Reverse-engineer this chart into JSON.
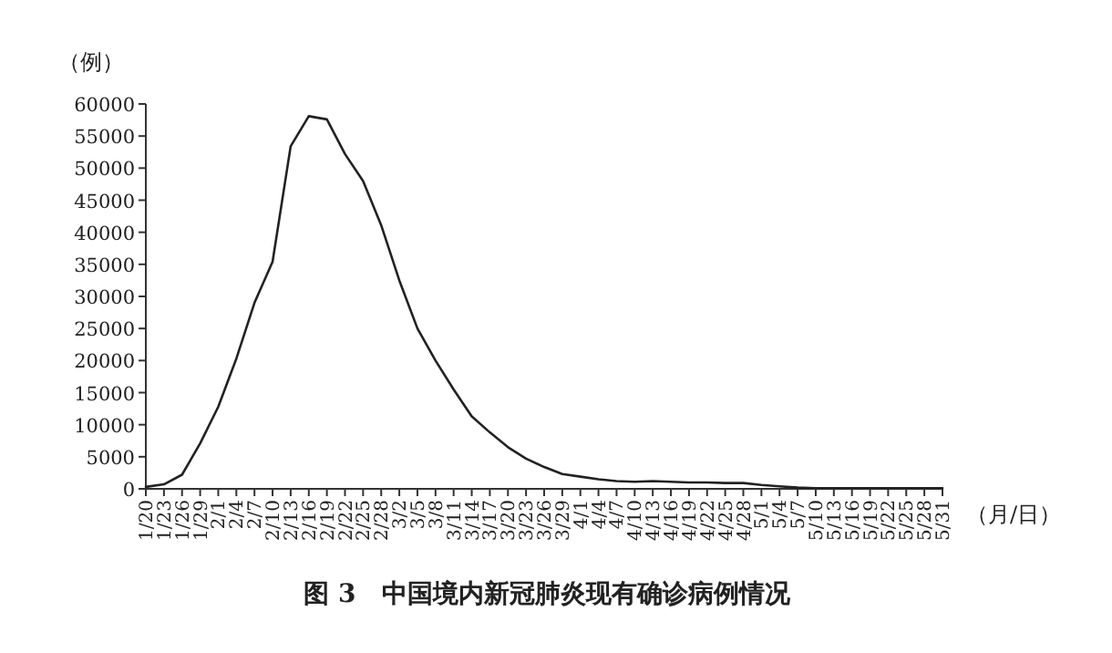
{
  "chart_data": {
    "type": "line",
    "title": "图 3　中国境内新冠肺炎现有确诊病例情况",
    "ylabel": "（例）",
    "xlabel": "（月/日）",
    "categories": [
      "1/20",
      "1/23",
      "1/26",
      "1/29",
      "2/1",
      "2/4",
      "2/7",
      "2/10",
      "2/13",
      "2/16",
      "2/19",
      "2/22",
      "2/25",
      "2/28",
      "3/2",
      "3/5",
      "3/8",
      "3/11",
      "3/14",
      "3/17",
      "3/20",
      "3/23",
      "3/26",
      "3/29",
      "4/1",
      "4/4",
      "4/7",
      "4/10",
      "4/13",
      "4/16",
      "4/19",
      "4/22",
      "4/25",
      "4/28",
      "5/1",
      "5/4",
      "5/7",
      "5/10",
      "5/13",
      "5/16",
      "5/19",
      "5/22",
      "5/25",
      "5/28",
      "5/31"
    ],
    "series": [
      {
        "color": "#222222",
        "values": [
          300,
          700,
          2200,
          7100,
          12800,
          20300,
          29000,
          35400,
          53400,
          58100,
          57600,
          52200,
          48000,
          41100,
          32500,
          25000,
          20000,
          15500,
          11300,
          8800,
          6500,
          4700,
          3400,
          2300,
          1900,
          1500,
          1200,
          1100,
          1200,
          1100,
          1000,
          1000,
          900,
          900,
          600,
          400,
          200,
          100,
          100,
          100,
          100,
          100,
          100,
          100,
          100
        ]
      }
    ],
    "ylim": [
      0,
      60000
    ],
    "yticks": [
      0,
      5000,
      10000,
      15000,
      20000,
      25000,
      30000,
      35000,
      40000,
      45000,
      50000,
      55000,
      60000
    ],
    "grid": false,
    "marker": "none",
    "line_style": "solid"
  }
}
